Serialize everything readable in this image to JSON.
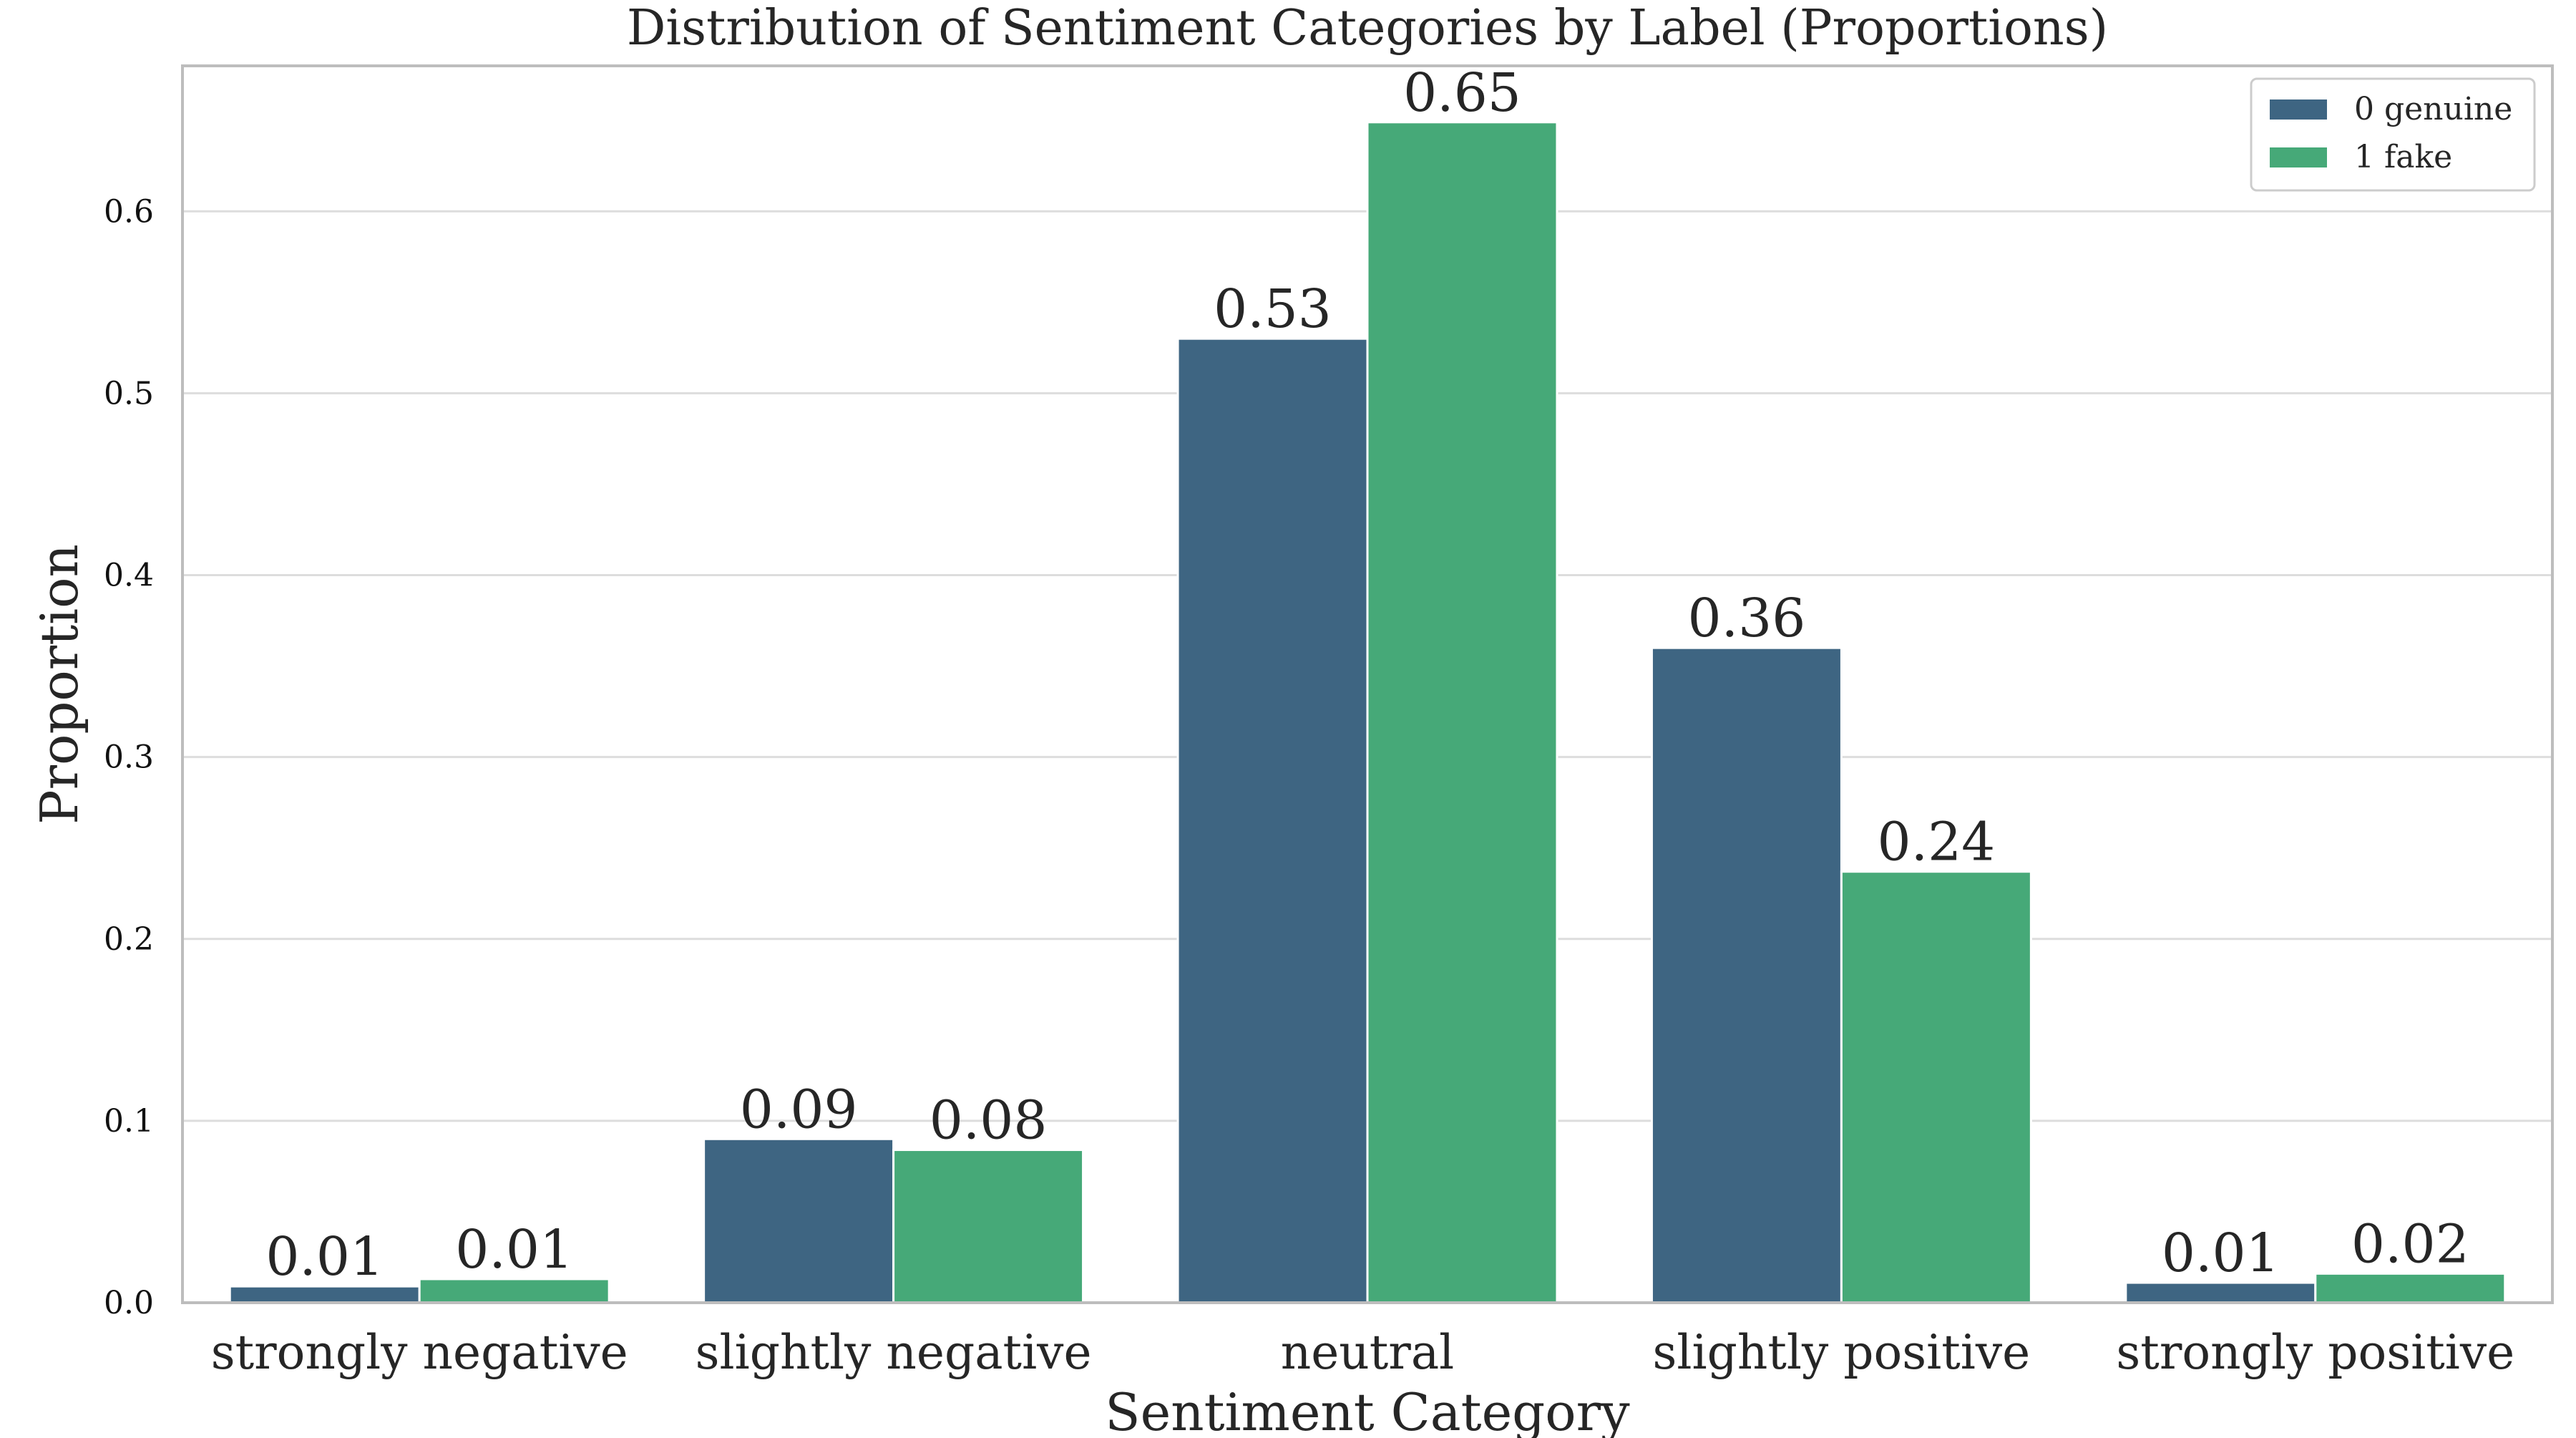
{
  "chart_data": {
    "type": "bar",
    "title": "Distribution of Sentiment Categories by Label (Proportions)",
    "xlabel": "Sentiment Category",
    "ylabel": "Proportion",
    "categories": [
      "strongly negative",
      "slightly negative",
      "neutral",
      "slightly positive",
      "strongly positive"
    ],
    "series": [
      {
        "name": "0 genuine",
        "color": "#3e6582",
        "values": [
          0.009,
          0.09,
          0.53,
          0.36,
          0.011
        ],
        "labels": [
          "0.01",
          "0.09",
          "0.53",
          "0.36",
          "0.01"
        ]
      },
      {
        "name": "1 fake",
        "color": "#46a978",
        "values": [
          0.013,
          0.084,
          0.649,
          0.237,
          0.016
        ],
        "labels": [
          "0.01",
          "0.08",
          "0.65",
          "0.24",
          "0.02"
        ]
      }
    ],
    "ylim": [
      0,
      0.68
    ],
    "yticks": [
      0.0,
      0.1,
      0.2,
      0.3,
      0.4,
      0.5,
      0.6
    ],
    "ytick_labels": [
      "0.0",
      "0.1",
      "0.2",
      "0.3",
      "0.4",
      "0.5",
      "0.6"
    ],
    "grid": "horizontal",
    "legend_position": "top-right"
  }
}
